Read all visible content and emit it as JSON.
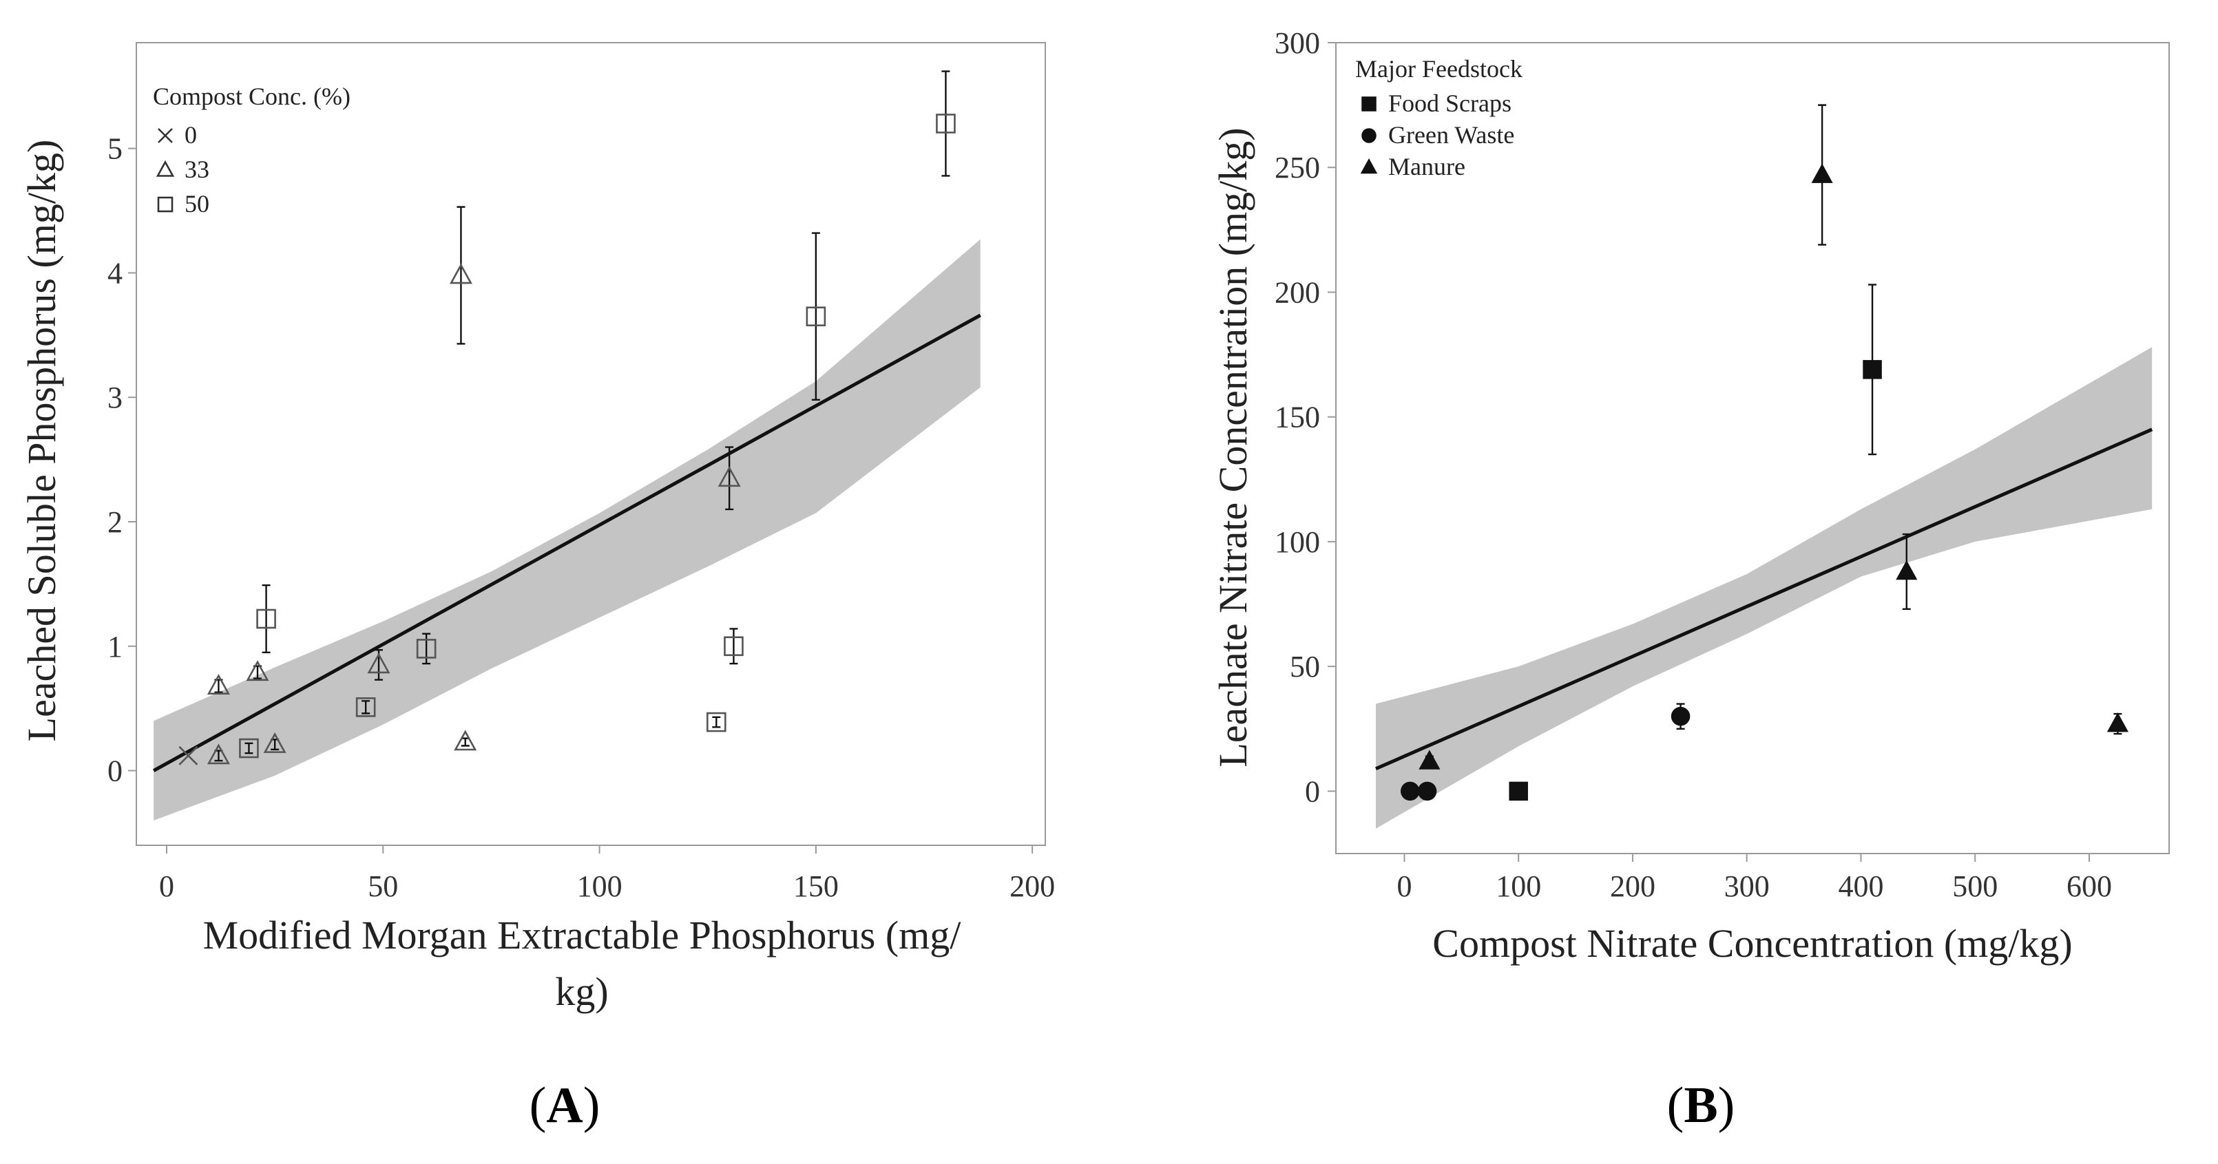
{
  "chart_data": [
    {
      "type": "scatter",
      "panel_label_prefix": "(",
      "panel_label_letter": "A",
      "panel_label_suffix": ")",
      "xlabel_line1": "Modified Morgan Extractable Phosphorus (mg/",
      "xlabel_line2": "kg)",
      "ylabel": "Leached Soluble Phosphorus (mg/kg)",
      "xlim": [
        -7,
        203
      ],
      "ylim": [
        -0.6,
        5.85
      ],
      "xticks": [
        0,
        50,
        100,
        150,
        200
      ],
      "xtick_labels": [
        "0",
        "50",
        "100",
        "150",
        "200"
      ],
      "yticks": [
        0,
        1,
        2,
        3,
        4,
        5
      ],
      "ytick_labels": [
        "0",
        "1",
        "2",
        "3",
        "4",
        "5"
      ],
      "legend_title": "Compost Conc. (%)",
      "legend_position": "top-left",
      "series": [
        {
          "name": "0",
          "marker": "x",
          "points": [
            {
              "x": 5,
              "y": 0.12,
              "err": 0
            }
          ]
        },
        {
          "name": "33",
          "marker": "triangle-open",
          "points": [
            {
              "x": 12,
              "y": 0.68,
              "err": 0.05
            },
            {
              "x": 12,
              "y": 0.12,
              "err": 0.04
            },
            {
              "x": 21,
              "y": 0.79,
              "err": 0.05
            },
            {
              "x": 25,
              "y": 0.21,
              "err": 0.04
            },
            {
              "x": 49,
              "y": 0.85,
              "err": 0.12
            },
            {
              "x": 68,
              "y": 3.98,
              "err": 0.55
            },
            {
              "x": 69,
              "y": 0.23,
              "err": 0.03
            },
            {
              "x": 130,
              "y": 2.35,
              "err": 0.25
            }
          ]
        },
        {
          "name": "50",
          "marker": "square-open",
          "points": [
            {
              "x": 19,
              "y": 0.18,
              "err": 0.04
            },
            {
              "x": 23,
              "y": 1.22,
              "err": 0.27
            },
            {
              "x": 46,
              "y": 0.51,
              "err": 0.05
            },
            {
              "x": 60,
              "y": 0.98,
              "err": 0.12
            },
            {
              "x": 127,
              "y": 0.39,
              "err": 0.04
            },
            {
              "x": 131,
              "y": 1.0,
              "err": 0.14
            },
            {
              "x": 150,
              "y": 3.65,
              "err": 0.67
            },
            {
              "x": 180,
              "y": 5.2,
              "err": 0.42
            }
          ]
        }
      ],
      "fit_line": {
        "x": [
          -3,
          188
        ],
        "y": [
          0.0,
          3.66
        ]
      },
      "confidence_band": {
        "x": [
          -3,
          25,
          50,
          75,
          100,
          125,
          150,
          188
        ],
        "upper": [
          0.4,
          0.83,
          1.2,
          1.6,
          2.07,
          2.58,
          3.13,
          4.27
        ],
        "lower": [
          -0.4,
          -0.04,
          0.37,
          0.82,
          1.23,
          1.64,
          2.07,
          3.08
        ]
      },
      "colors": {
        "band": "#c4c4c4",
        "line": "#111111",
        "marker": "#555555",
        "frame": "#9a9a9a"
      }
    },
    {
      "type": "scatter",
      "panel_label_prefix": "(",
      "panel_label_letter": "B",
      "panel_label_suffix": ")",
      "xlabel_line1": "Compost Nitrate Concentration (mg/kg)",
      "xlabel_line2": "",
      "ylabel": "Leachate Nitrate Concentration  (mg/kg)",
      "xlim": [
        -60,
        670
      ],
      "ylim": [
        -25,
        300
      ],
      "xticks": [
        0,
        100,
        200,
        300,
        400,
        500,
        600
      ],
      "xtick_labels": [
        "0",
        "100",
        "200",
        "300",
        "400",
        "500",
        "600"
      ],
      "yticks": [
        0,
        50,
        100,
        150,
        200,
        250,
        300
      ],
      "ytick_labels": [
        "0",
        "50",
        "100",
        "150",
        "200",
        "250",
        "300"
      ],
      "legend_title": "Major Feedstock",
      "legend_position": "top-left",
      "series": [
        {
          "name": "Food Scraps",
          "marker": "square-filled",
          "points": [
            {
              "x": 100,
              "y": 0,
              "err": 0
            },
            {
              "x": 410,
              "y": 169,
              "err": 34
            }
          ]
        },
        {
          "name": "Green Waste",
          "marker": "circle-filled",
          "points": [
            {
              "x": 5,
              "y": 0,
              "err": 0
            },
            {
              "x": 20,
              "y": 0,
              "err": 0
            },
            {
              "x": 242,
              "y": 30,
              "err": 5
            }
          ]
        },
        {
          "name": "Manure",
          "marker": "triangle-filled",
          "points": [
            {
              "x": 22,
              "y": 12,
              "err": 2
            },
            {
              "x": 366,
              "y": 247,
              "err": 28
            },
            {
              "x": 440,
              "y": 88,
              "err": 15
            },
            {
              "x": 625,
              "y": 27,
              "err": 4
            }
          ]
        }
      ],
      "fit_line": {
        "x": [
          -25,
          655
        ],
        "y": [
          9,
          145
        ]
      },
      "confidence_band": {
        "x": [
          -25,
          100,
          200,
          300,
          400,
          500,
          655
        ],
        "upper": [
          35,
          50,
          67,
          87,
          113,
          137,
          178
        ],
        "lower": [
          -15,
          18,
          42,
          63,
          86,
          100,
          113
        ]
      },
      "colors": {
        "band": "#c4c4c4",
        "line": "#111111",
        "marker": "#111111",
        "frame": "#9a9a9a"
      }
    }
  ]
}
